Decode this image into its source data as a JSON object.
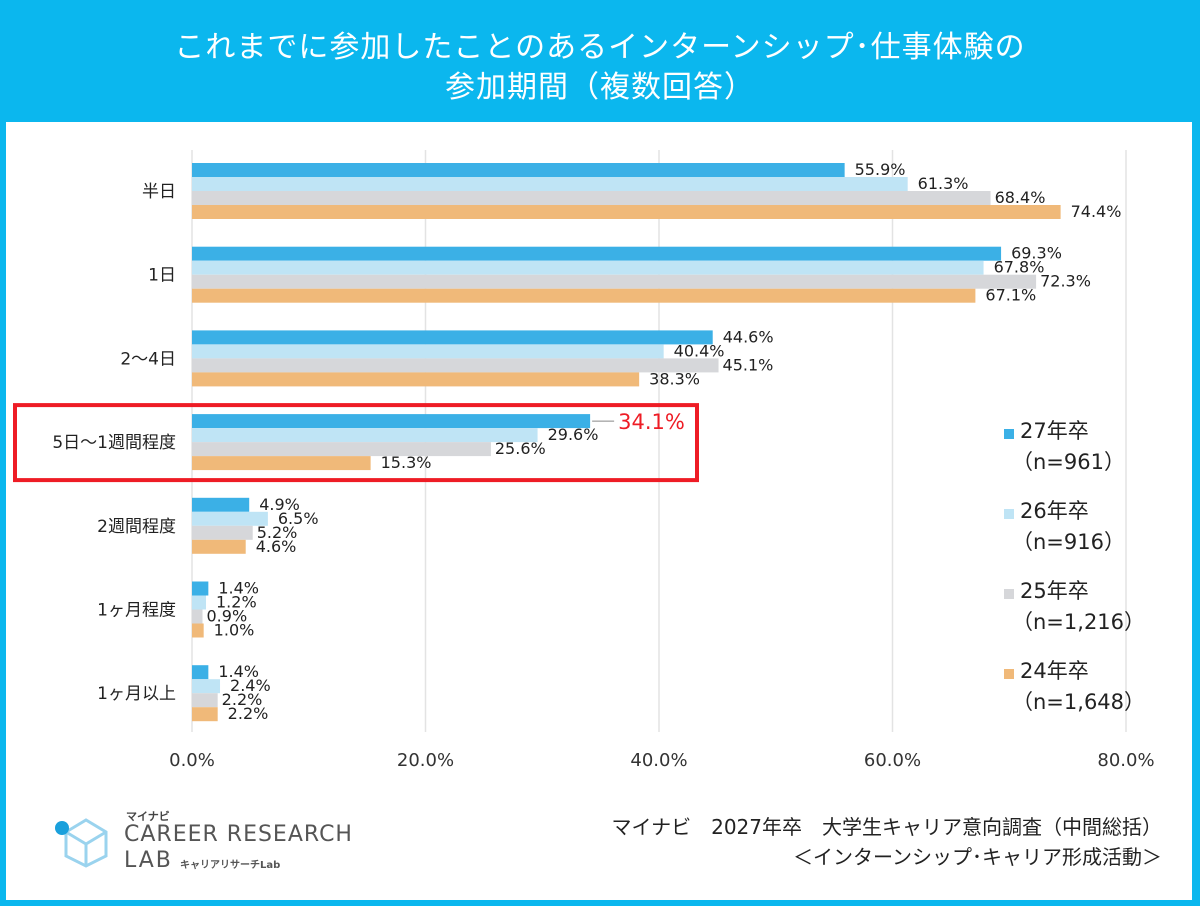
{
  "header": {
    "title_line1": "これまでに参加したことのあるインターンシップ･仕事体験の",
    "title_line2": "参加期間（複数回答）"
  },
  "chart_data": {
    "type": "bar",
    "orientation": "horizontal",
    "categories": [
      "半日",
      "1日",
      "2～4日",
      "5日～1週間程度",
      "2週間程度",
      "1ヶ月程度",
      "1ヶ月以上"
    ],
    "series": [
      {
        "name": "27年卒",
        "n_label": "（n=961）",
        "color": "#3bb0e6",
        "values": [
          55.9,
          69.3,
          44.6,
          34.1,
          4.9,
          1.4,
          1.4
        ],
        "labels": [
          "55.9%",
          "69.3%",
          "44.6%",
          "34.1%",
          "4.9%",
          "1.4%",
          "1.4%"
        ]
      },
      {
        "name": "26年卒",
        "n_label": "（n=916）",
        "color": "#bfe4f5",
        "values": [
          61.3,
          67.8,
          40.4,
          29.6,
          6.5,
          1.2,
          2.4
        ],
        "labels": [
          "61.3%",
          "67.8%",
          "40.4%",
          "29.6%",
          "6.5%",
          "1.2%",
          "2.4%"
        ]
      },
      {
        "name": "25年卒",
        "n_label": "（n=1,216）",
        "color": "#d6d7da",
        "values": [
          68.4,
          72.3,
          45.1,
          25.6,
          5.2,
          0.9,
          2.2
        ],
        "labels": [
          "68.4%",
          "72.3%",
          "45.1%",
          "25.6%",
          "5.2%",
          "0.9%",
          "2.2%"
        ]
      },
      {
        "name": "24年卒",
        "n_label": "（n=1,648）",
        "color": "#f0b979",
        "values": [
          74.4,
          67.1,
          38.3,
          15.3,
          4.6,
          1.0,
          2.2
        ],
        "labels": [
          "74.4%",
          "67.1%",
          "38.3%",
          "15.3%",
          "4.6%",
          "1.0%",
          "2.2%"
        ]
      }
    ],
    "xlim": [
      0,
      80
    ],
    "xticks": [
      0,
      20,
      40,
      60,
      80
    ],
    "xtick_labels": [
      "0.0%",
      "20.0%",
      "40.0%",
      "60.0%",
      "80.0%"
    ],
    "highlight_category": "5日～1週間程度",
    "highlight_color": "#ee1c25",
    "legend_position": "right"
  },
  "logo": {
    "small": "マイナビ",
    "line1": "CAREER RESEARCH",
    "line2": "LAB",
    "line2_small": "キャリアリサーチLab"
  },
  "footer": {
    "source_line1": "マイナビ　2027年卒　大学生キャリア意向調査（中間総括）",
    "source_line2": "＜インターンシップ･キャリア形成活動＞"
  }
}
